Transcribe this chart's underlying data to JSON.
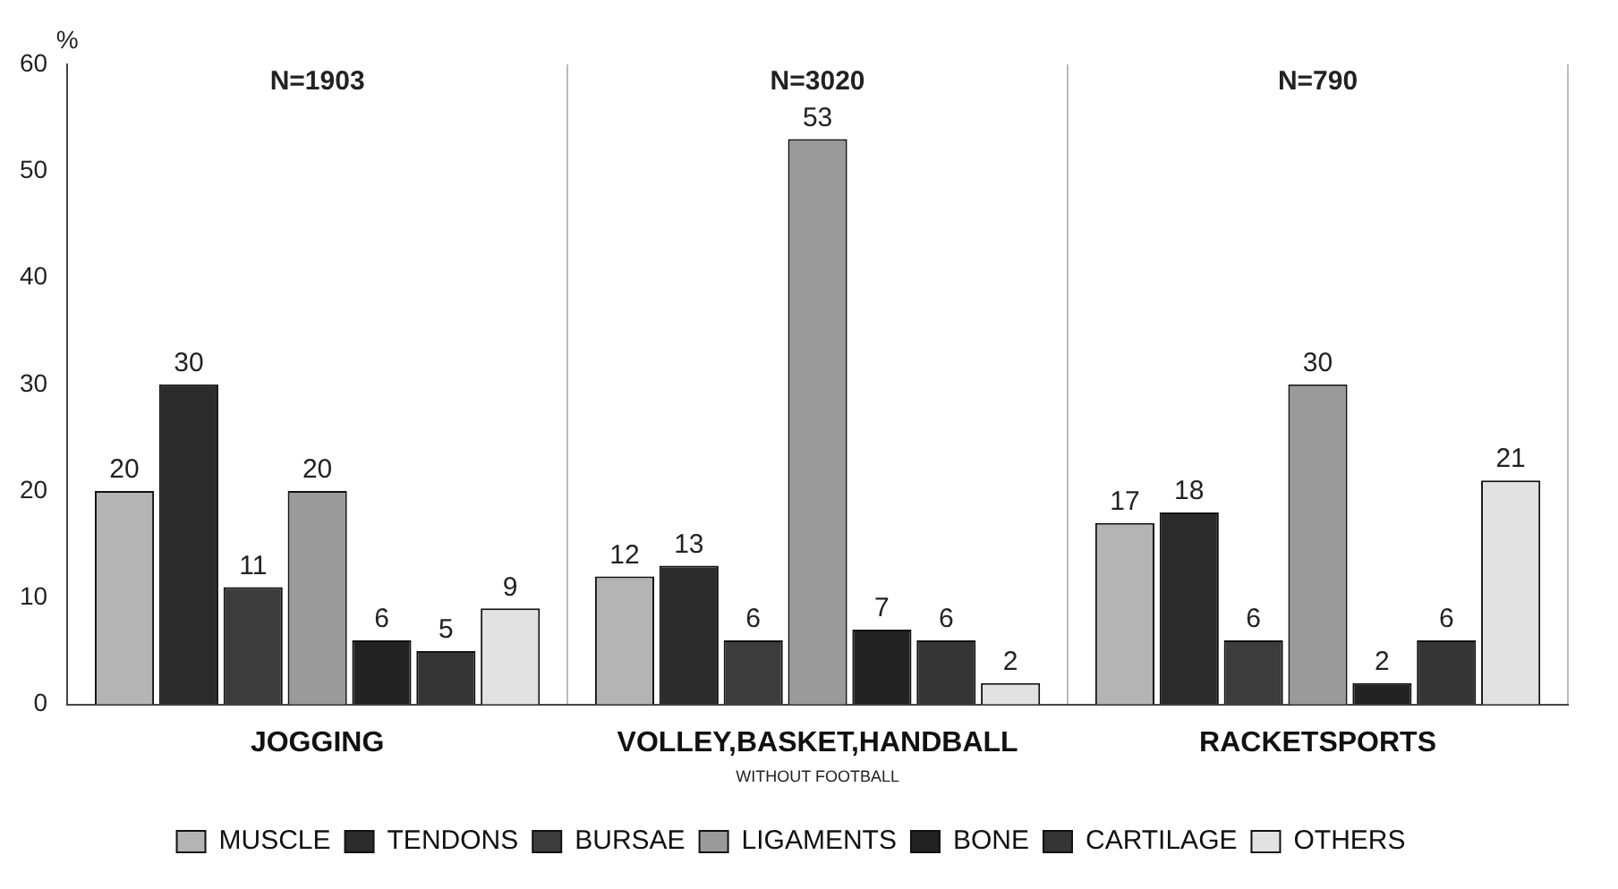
{
  "chart_data": {
    "type": "bar",
    "ylabel": "%",
    "categories": [
      "JOGGING",
      "VOLLEY,BASKET,HANDBALL",
      "RACKETSPORTS"
    ],
    "series": [
      {
        "name": "MUSCLE",
        "color": "#b4b4b4",
        "values": [
          20,
          12,
          17
        ]
      },
      {
        "name": "TENDONS",
        "color": "#2b2b2b",
        "values": [
          30,
          13,
          18
        ]
      },
      {
        "name": "BURSAE",
        "color": "#3c3c3c",
        "values": [
          11,
          6,
          6
        ]
      },
      {
        "name": "LIGAMENTS",
        "color": "#9a9a9a",
        "values": [
          20,
          53,
          30
        ]
      },
      {
        "name": "BONE",
        "color": "#222222",
        "values": [
          6,
          7,
          2
        ]
      },
      {
        "name": "CARTILAGE",
        "color": "#353535",
        "values": [
          5,
          6,
          6
        ]
      },
      {
        "name": "OTHERS",
        "color": "#e2e2e2",
        "values": [
          9,
          2,
          21
        ]
      }
    ],
    "ylim": [
      0,
      60
    ],
    "yticks": [
      0,
      10,
      20,
      30,
      40,
      50,
      60
    ],
    "grid": "x",
    "legend": "bottom",
    "data_labels": true,
    "annotations": [
      "N=1903",
      "N=3020",
      "N=790",
      "WITHOUT FOOTBALL"
    ]
  }
}
